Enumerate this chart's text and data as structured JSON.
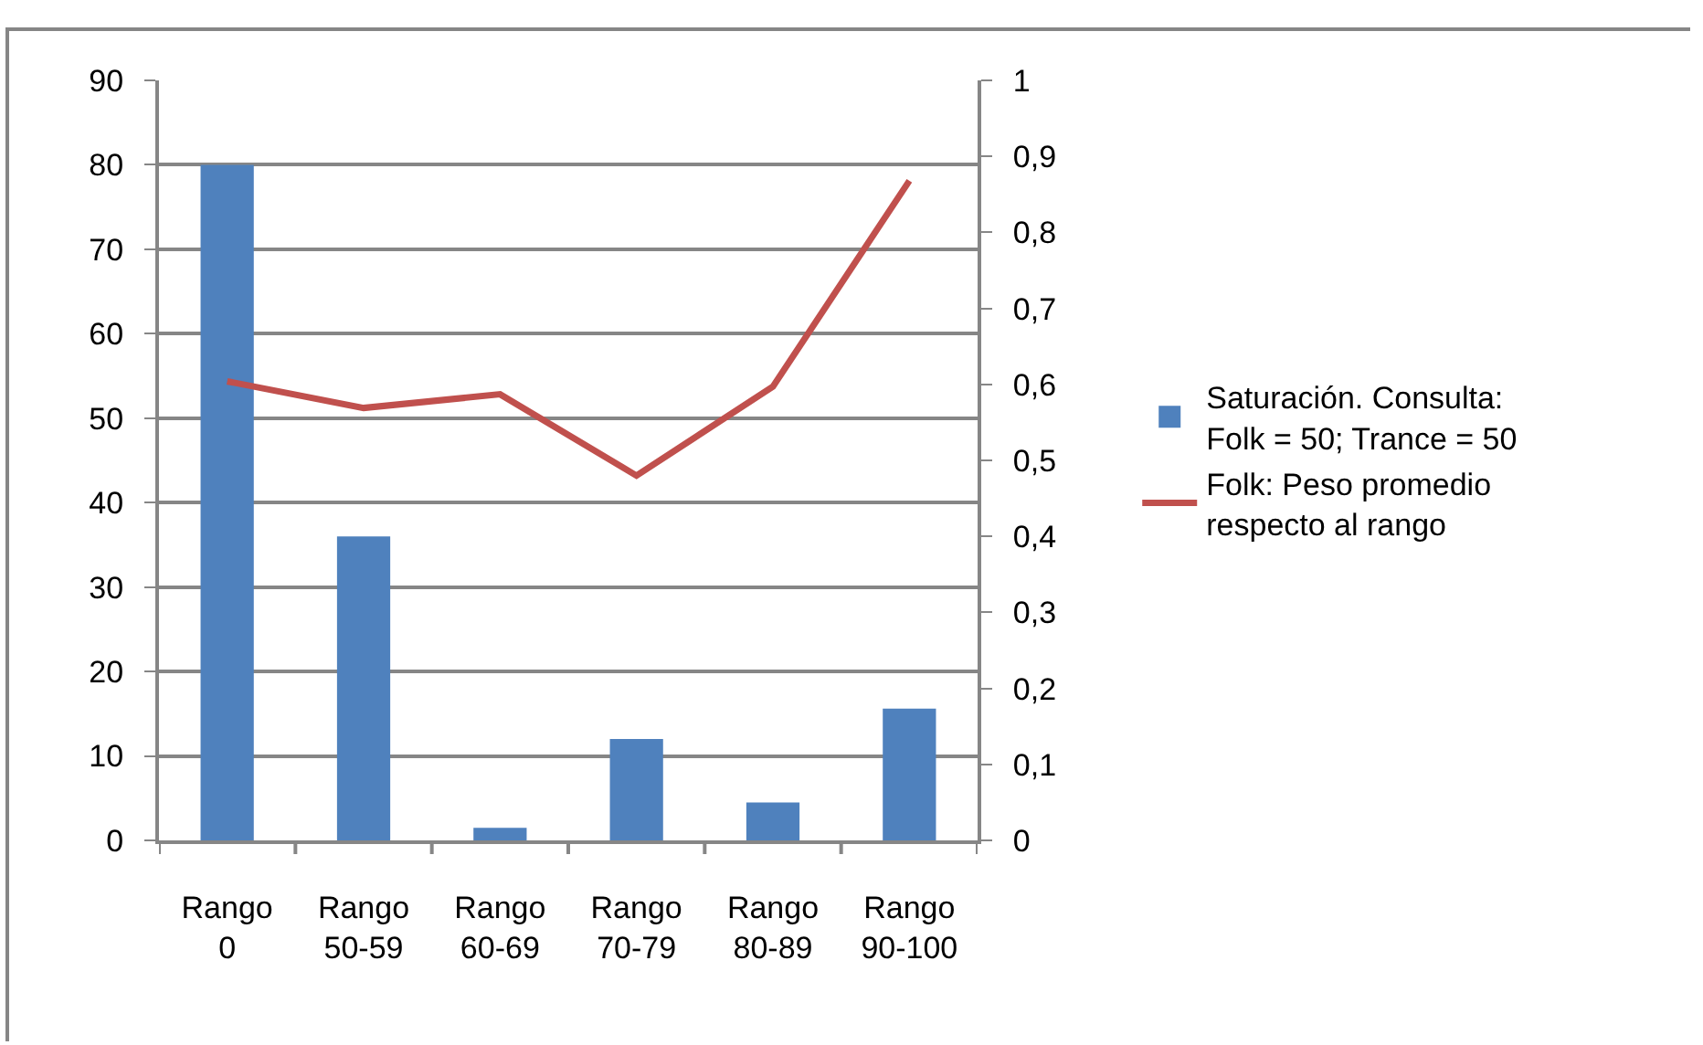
{
  "chart_data": {
    "type": "bar",
    "categories": [
      "Rango 0",
      "Rango 50-59",
      "Rango 60-69",
      "Rango 70-79",
      "Rango 80-89",
      "Rango 90-100"
    ],
    "series": [
      {
        "name": "Saturación. Consulta: Folk = 50; Trance = 50",
        "color": "#4f81bd",
        "values": [
          80,
          36,
          1.5,
          12,
          4.5,
          15.6
        ]
      },
      {
        "type": "line",
        "axis": "y2",
        "name": "Folk: Peso promedio respecto al rango",
        "color": "#c0504d",
        "values": [
          0.604,
          0.569,
          0.587,
          0.48,
          0.597,
          0.868
        ]
      }
    ],
    "ylim": [
      0,
      90
    ],
    "yticks": [
      0,
      10,
      20,
      30,
      40,
      50,
      60,
      70,
      80,
      90
    ],
    "y2lim": [
      0,
      1
    ],
    "y2ticks": [
      0,
      {
        "value": 0.1,
        "label": "0,1"
      },
      {
        "value": 0.2,
        "label": "0,2"
      },
      {
        "value": 0.3,
        "label": "0,3"
      },
      {
        "value": 0.4,
        "label": "0,4"
      },
      {
        "value": 0.5,
        "label": "0,5"
      },
      {
        "value": 0.6,
        "label": "0,6"
      },
      {
        "value": 0.7,
        "label": "0,7"
      },
      {
        "value": 0.8,
        "label": "0,8"
      },
      {
        "value": 0.9,
        "label": "0,9"
      },
      1
    ],
    "grid": "y",
    "legend": "right"
  }
}
